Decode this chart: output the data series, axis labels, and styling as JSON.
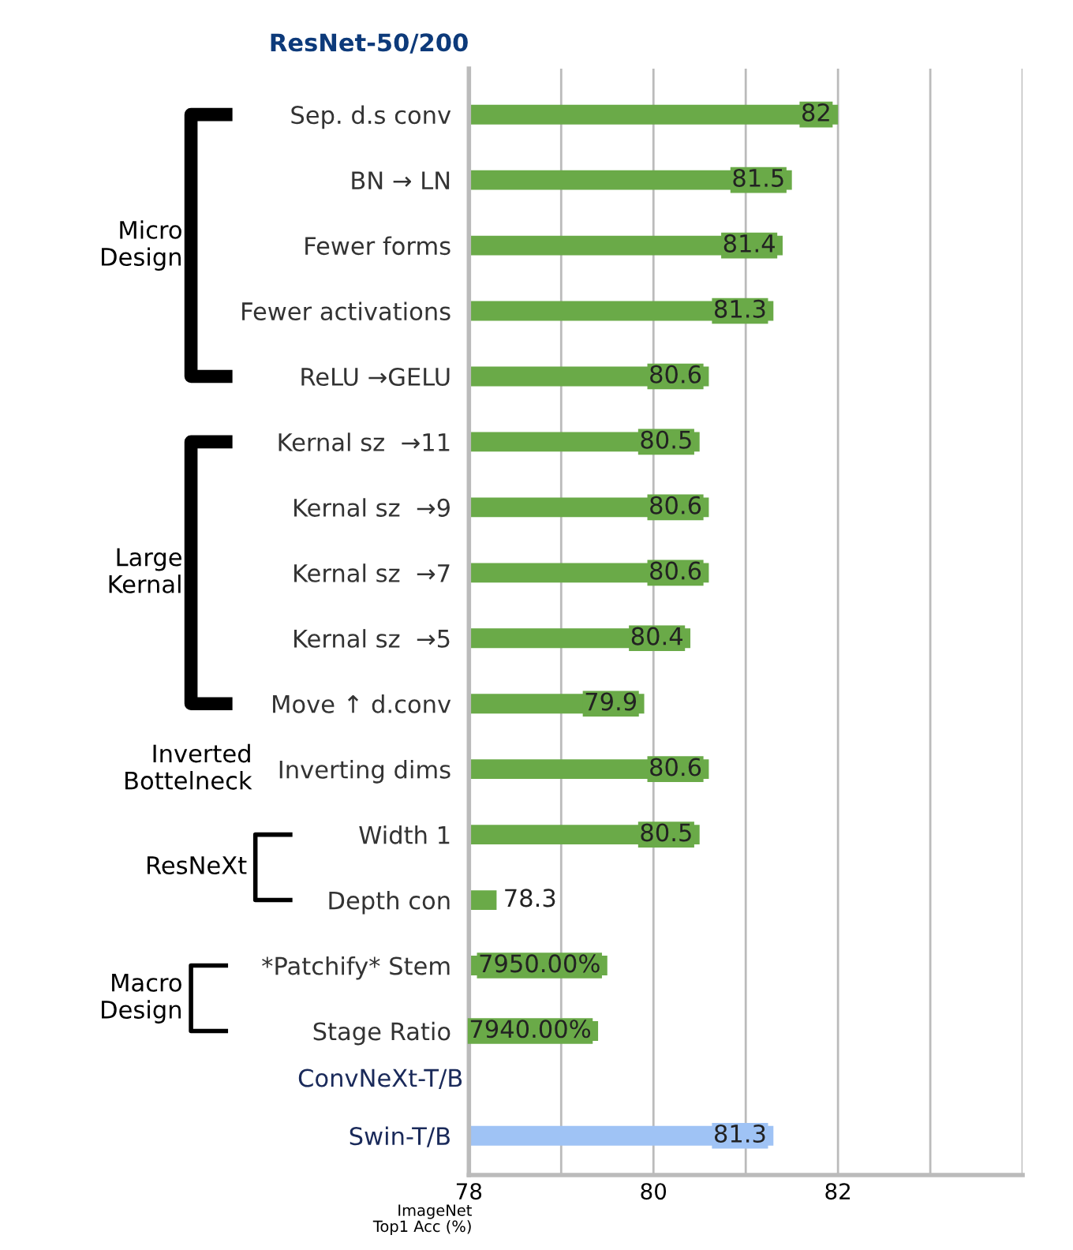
{
  "chart_data": {
    "type": "bar",
    "orientation": "horizontal",
    "title": "ResNet-50/200",
    "xlabel": "ImageNet\nTop1 Acc (%)",
    "categories": [
      "Sep. d.s conv",
      "BN → LN",
      "Fewer forms",
      "Fewer activations",
      "ReLU →GELU",
      "Kernal sz  →11",
      "Kernal sz  →9",
      "Kernal sz  →7",
      "Kernal sz  →5",
      "Move ↑ d.conv",
      "Inverting dims",
      "Width 1",
      "Depth con",
      "*Patchify* Stem",
      "Stage Ratio",
      "Swin-T/B"
    ],
    "values": [
      82,
      81.5,
      81.4,
      81.3,
      80.6,
      80.5,
      80.6,
      80.6,
      80.4,
      79.9,
      80.6,
      80.5,
      78.3,
      79.5,
      79.4,
      81.3
    ],
    "value_labels": [
      "82",
      "81.5",
      "81.4",
      "81.3",
      "80.6",
      "80.5",
      "80.6",
      "80.6",
      "80.4",
      "79.9",
      "80.6",
      "80.5",
      "78.3",
      "7950.00%",
      "7940.00%",
      "81.3"
    ],
    "colors": [
      "#6aaa48",
      "#6aaa48",
      "#6aaa48",
      "#6aaa48",
      "#6aaa48",
      "#6aaa48",
      "#6aaa48",
      "#6aaa48",
      "#6aaa48",
      "#6aaa48",
      "#6aaa48",
      "#6aaa48",
      "#6aaa48",
      "#6aaa48",
      "#6aaa48",
      "#9fc3f5"
    ],
    "xlim": [
      78,
      84
    ],
    "xticks": [
      78,
      {
        "value": 79,
        "label": null
      },
      80,
      {
        "value": 81,
        "label": null
      },
      82,
      {
        "value": 83,
        "label": null
      },
      {
        "value": 84,
        "label": null
      }
    ],
    "grid": "x",
    "annotations": [
      "Micro\nDesign",
      "Large\nKernal",
      "Inverted\nBottelneck",
      "ResNeXt",
      "Macro\nDesign",
      "ConvNeXt-T/B"
    ]
  }
}
